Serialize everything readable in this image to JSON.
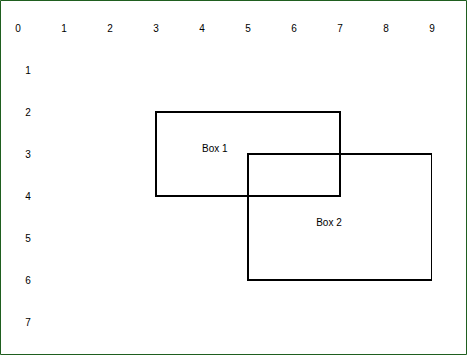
{
  "chart_data": {
    "type": "rectangles",
    "xlim": [
      0,
      9
    ],
    "xticks": [
      0,
      1,
      2,
      3,
      4,
      5,
      6,
      7,
      8,
      9
    ],
    "ylim": [
      0,
      7
    ],
    "yticks": [
      1,
      2,
      3,
      4,
      5,
      6,
      7
    ],
    "grid": false,
    "color": "#000000",
    "boxes": [
      {
        "name": "Box 1",
        "x": [
          3,
          7
        ],
        "y": [
          2,
          4
        ]
      },
      {
        "name": "Box 2",
        "x": [
          5,
          9
        ],
        "y": [
          3,
          6
        ]
      }
    ]
  }
}
